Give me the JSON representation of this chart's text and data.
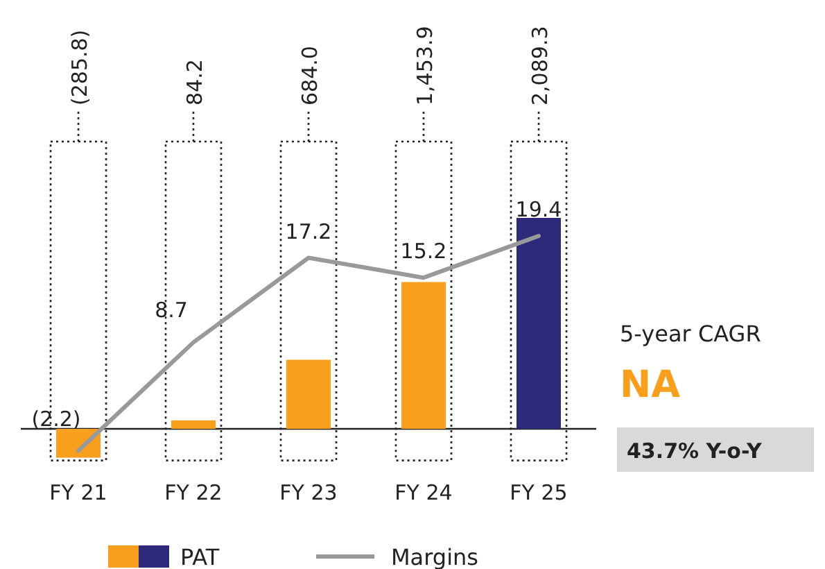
{
  "chart_data": {
    "type": "bar",
    "categories": [
      "FY 21",
      "FY 22",
      "FY 23",
      "FY 24",
      "FY 25"
    ],
    "legend": "bottom",
    "tick_labels": "x",
    "series": [
      {
        "name": "PAT",
        "colors": [
          "#f8a01d",
          "#f8a01d",
          "#f8a01d",
          "#f8a01d",
          "#2e2a7a"
        ],
        "values": [
          -285.8,
          84.2,
          684.0,
          1453.9,
          2089.3
        ],
        "value_labels": [
          "(285.8)",
          "84.2",
          "684.0",
          "1,453.9",
          "2,089.3"
        ]
      },
      {
        "name": "Margins",
        "type": "line",
        "axis": "y2",
        "color": "#999999",
        "values": [
          -2.2,
          8.7,
          17.2,
          15.2,
          19.4
        ],
        "value_labels": [
          "(2.2)",
          "8.7",
          "17.2",
          "15.2",
          "19.4"
        ]
      }
    ],
    "annotations": [
      "5-year CAGR",
      "NA",
      "43.7% Y-o-Y"
    ]
  }
}
